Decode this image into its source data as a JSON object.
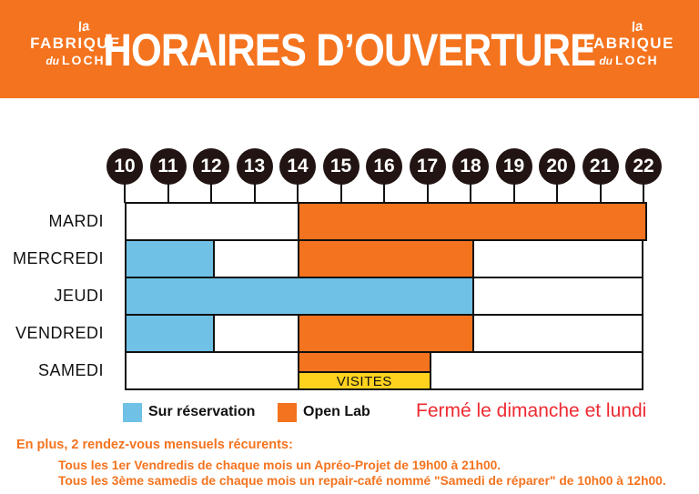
{
  "header": {
    "title": "HORAIRES D’OUVERTURE",
    "logo": {
      "top": "la",
      "main": "FABRIQUE",
      "sub_prefix": "du",
      "sub_main": "LOCH"
    }
  },
  "colors": {
    "orange": "#F4731E",
    "blue": "#6FC1E5",
    "yellow": "#FFD21E",
    "red": "#EE2A33",
    "circle_dark": "#211412",
    "line": "#111111"
  },
  "chart_data": {
    "type": "table",
    "subtype": "weekly-opening-hours-gantt",
    "hours": [
      10,
      11,
      12,
      13,
      14,
      15,
      16,
      17,
      18,
      19,
      20,
      21,
      22
    ],
    "xlim": [
      10,
      22
    ],
    "days": [
      {
        "label": "MARDI",
        "segments": [
          {
            "start": 14,
            "end": 22,
            "type": "openlab"
          }
        ]
      },
      {
        "label": "MERCREDI",
        "segments": [
          {
            "start": 10,
            "end": 12,
            "type": "reservation"
          },
          {
            "start": 14,
            "end": 18,
            "type": "openlab"
          }
        ]
      },
      {
        "label": "JEUDI",
        "segments": [
          {
            "start": 10,
            "end": 18,
            "type": "reservation"
          }
        ]
      },
      {
        "label": "VENDREDI",
        "segments": [
          {
            "start": 10,
            "end": 12,
            "type": "reservation"
          },
          {
            "start": 14,
            "end": 18,
            "type": "openlab"
          }
        ]
      },
      {
        "label": "SAMEDI",
        "segments": [
          {
            "start": 14,
            "end": 17,
            "type": "openlab",
            "half": "top"
          },
          {
            "start": 14,
            "end": 17,
            "type": "visites",
            "half": "bottom",
            "label": "VISITES"
          }
        ]
      }
    ],
    "legend": [
      {
        "label": "Sur réservation",
        "type": "reservation"
      },
      {
        "label": "Open Lab",
        "type": "openlab"
      }
    ],
    "closed_note": "Fermé le dimanche et lundi"
  },
  "footer": {
    "intro": "En plus, 2 rendez-vous mensuels récurents:",
    "lines": [
      "Tous les 1er Vendredis de chaque mois un Apréo-Projet de 19h00 à 21h00.",
      "Tous les 3ème samedis de chaque mois un repair-café nommé \"Samedi de réparer\" de 10h00 à 12h00."
    ]
  }
}
